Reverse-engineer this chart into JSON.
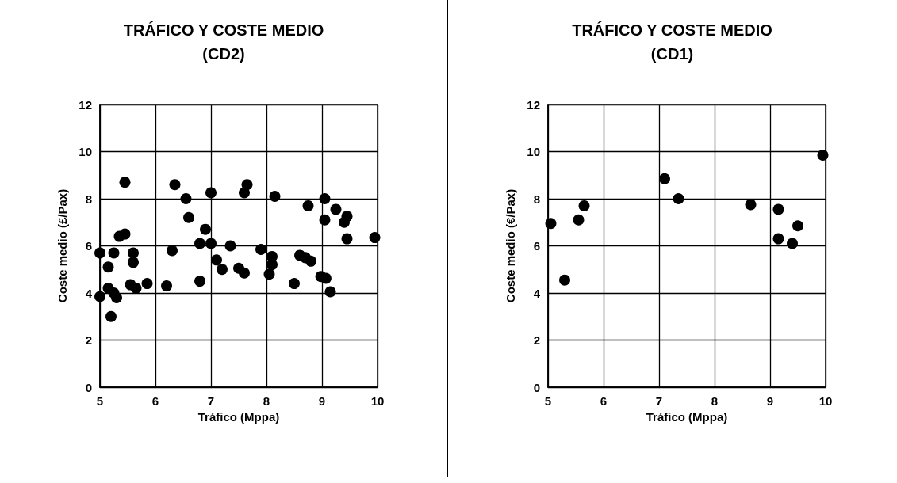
{
  "chart_data": [
    {
      "type": "scatter",
      "title": "TRÁFICO Y COSTE MEDIO\n(CD2)",
      "xlabel": "Tráfico (Mppa)",
      "ylabel": "Coste medio (£/Pax)",
      "xlim": [
        5,
        10
      ],
      "xticks": [
        5,
        6,
        7,
        8,
        9,
        10
      ],
      "ylim": [
        0,
        12
      ],
      "yticks": [
        0,
        2,
        4,
        6,
        8,
        10,
        12
      ],
      "grid": true,
      "marker": "circle",
      "x": [
        5.0,
        5.0,
        5.15,
        5.15,
        5.2,
        5.25,
        5.3,
        5.25,
        5.35,
        5.45,
        5.45,
        5.55,
        5.6,
        5.6,
        5.65,
        5.85,
        6.2,
        6.3,
        6.35,
        6.55,
        6.6,
        6.8,
        6.8,
        6.9,
        7.0,
        7.0,
        7.1,
        7.2,
        7.35,
        7.5,
        7.6,
        7.6,
        7.65,
        7.9,
        8.05,
        8.1,
        8.1,
        8.15,
        8.5,
        8.6,
        8.7,
        8.8,
        8.75,
        8.98,
        9.05,
        9.05,
        9.07,
        9.15,
        9.25,
        9.4,
        9.45,
        9.45,
        9.95
      ],
      "series": [
        {
          "color": "#000000",
          "values": [
            3.85,
            5.7,
            5.1,
            4.2,
            3.0,
            4.0,
            3.8,
            5.7,
            6.4,
            6.5,
            8.7,
            4.35,
            5.7,
            5.3,
            4.2,
            4.4,
            4.3,
            5.8,
            8.6,
            8.0,
            7.2,
            6.1,
            4.5,
            6.7,
            6.1,
            8.25,
            5.4,
            5.0,
            6.0,
            5.05,
            4.85,
            8.25,
            8.6,
            5.85,
            4.8,
            5.2,
            5.55,
            8.1,
            4.4,
            5.6,
            5.5,
            5.35,
            7.7,
            4.7,
            8.0,
            7.1,
            4.62,
            4.05,
            7.55,
            7.0,
            7.25,
            6.3,
            6.35
          ]
        }
      ]
    },
    {
      "type": "scatter",
      "title": "TRÁFICO Y COSTE MEDIO\n(CD1)",
      "xlabel": "Tráfico (Mppa)",
      "ylabel": "Coste medio (€/Pax)",
      "xlim": [
        5,
        10
      ],
      "xticks": [
        5,
        6,
        7,
        8,
        9,
        10
      ],
      "ylim": [
        0,
        12
      ],
      "yticks": [
        0,
        2,
        4,
        6,
        8,
        10,
        12
      ],
      "grid": true,
      "marker": "circle",
      "x": [
        5.05,
        5.3,
        5.55,
        5.65,
        7.1,
        7.35,
        8.65,
        9.15,
        9.15,
        9.4,
        9.5,
        9.95
      ],
      "series": [
        {
          "color": "#000000",
          "values": [
            6.95,
            4.55,
            7.1,
            7.7,
            8.85,
            8.0,
            7.75,
            7.55,
            6.3,
            6.1,
            6.85,
            9.85
          ]
        }
      ]
    }
  ]
}
